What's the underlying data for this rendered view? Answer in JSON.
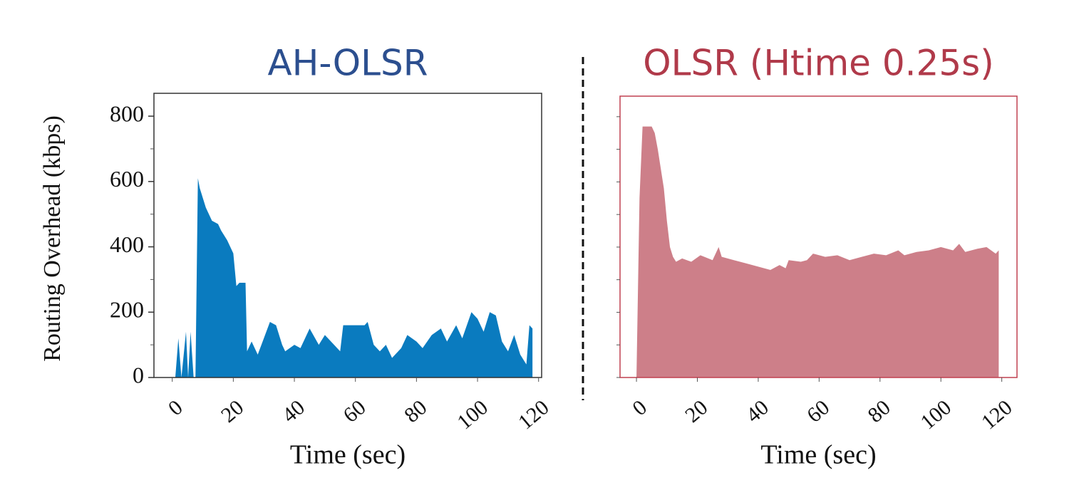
{
  "chart_data": [
    {
      "type": "area",
      "title": "AH-OLSR",
      "title_color": "#2c4f8f",
      "frame_color": "#333333",
      "color": "#0a7bbf",
      "xlabel": "Time (sec)",
      "ylabel": "Routing Overhead (kbps)",
      "xlim": [
        -6,
        121
      ],
      "ylim": [
        0,
        870
      ],
      "xticks": [
        0,
        20,
        40,
        60,
        80,
        100,
        120
      ],
      "yticks": [
        0,
        200,
        400,
        600,
        800
      ],
      "yminor": [
        100,
        300,
        500,
        700
      ],
      "x": [
        1,
        2,
        3,
        4.5,
        5.2,
        6,
        7,
        7.6,
        8.4,
        9,
        11,
        13,
        15,
        16,
        18,
        20,
        21,
        22,
        24,
        24.5,
        26,
        28,
        30,
        32,
        34,
        36,
        37,
        40,
        42,
        45,
        48,
        50,
        52,
        55,
        56,
        60,
        63,
        64,
        66,
        68,
        70,
        72,
        75,
        77,
        80,
        82,
        85,
        88,
        90,
        93,
        95,
        98,
        100,
        102,
        104,
        106,
        108,
        110,
        112,
        114,
        116,
        117,
        118
      ],
      "values": [
        0,
        120,
        0,
        140,
        0,
        140,
        0,
        0,
        610,
        580,
        520,
        480,
        470,
        450,
        420,
        380,
        280,
        290,
        290,
        80,
        110,
        70,
        120,
        170,
        160,
        100,
        80,
        100,
        90,
        150,
        100,
        130,
        110,
        80,
        160,
        160,
        160,
        170,
        100,
        80,
        100,
        60,
        90,
        130,
        110,
        90,
        130,
        150,
        110,
        160,
        120,
        200,
        180,
        140,
        200,
        190,
        110,
        80,
        130,
        70,
        40,
        160,
        150
      ]
    },
    {
      "type": "area",
      "title": "OLSR (Htime 0.25s)",
      "title_color": "#b03a4a",
      "frame_color": "#c04050",
      "color": "#cd7f89",
      "xlabel": "Time (sec)",
      "xlim": [
        -5.4,
        125
      ],
      "ylim": [
        0,
        863
      ],
      "xticks": [
        0,
        20,
        40,
        60,
        80,
        100,
        120
      ],
      "yminor": [
        0,
        100,
        200,
        300,
        400,
        500,
        600,
        700,
        800
      ],
      "x": [
        0,
        1,
        2,
        5,
        6,
        7,
        9,
        10,
        11,
        12,
        13,
        15,
        18,
        21,
        25,
        27,
        28,
        32,
        36,
        40,
        44,
        47,
        49,
        50,
        54,
        56,
        58,
        62,
        66,
        70,
        74,
        78,
        82,
        86,
        88,
        92,
        96,
        100,
        104,
        106,
        108,
        112,
        115,
        118,
        119
      ],
      "values": [
        0,
        550,
        770,
        770,
        750,
        700,
        580,
        480,
        400,
        370,
        355,
        365,
        355,
        375,
        360,
        400,
        370,
        360,
        350,
        340,
        330,
        345,
        335,
        360,
        355,
        360,
        380,
        370,
        375,
        360,
        370,
        380,
        375,
        390,
        375,
        385,
        390,
        400,
        390,
        410,
        385,
        395,
        400,
        380,
        390
      ]
    }
  ]
}
